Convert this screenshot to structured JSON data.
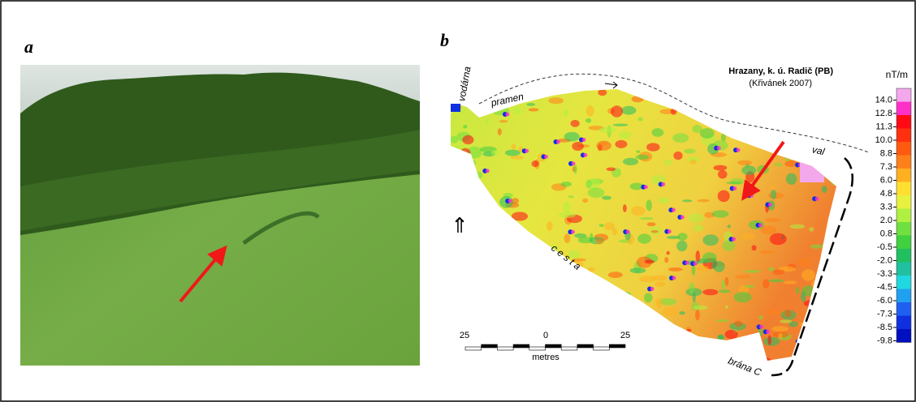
{
  "panels": {
    "a": {
      "label": "a"
    },
    "b": {
      "label": "b",
      "title": "Hrazany, k. ú. Radič (PB)",
      "credit": "(Křivánek 2007)",
      "place_labels": {
        "waterworks": "vodárna",
        "spring": "pramen",
        "rampart": "val",
        "road": "c e s t a",
        "gate": "brána C"
      },
      "north_arrow": "⇑",
      "scale": {
        "ticks": [
          "25",
          "0",
          "25"
        ],
        "unit": "metres"
      },
      "legend": {
        "unit": "nT/m",
        "labels": [
          "14.0",
          "12.8",
          "11.3",
          "10.0",
          "8.8",
          "7.3",
          "6.0",
          "4.8",
          "3.3",
          "2.0",
          "0.8",
          "-0.5",
          "-2.0",
          "-3.3",
          "-4.5",
          "-6.0",
          "-7.3",
          "-8.5",
          "-9.8"
        ]
      }
    }
  }
}
